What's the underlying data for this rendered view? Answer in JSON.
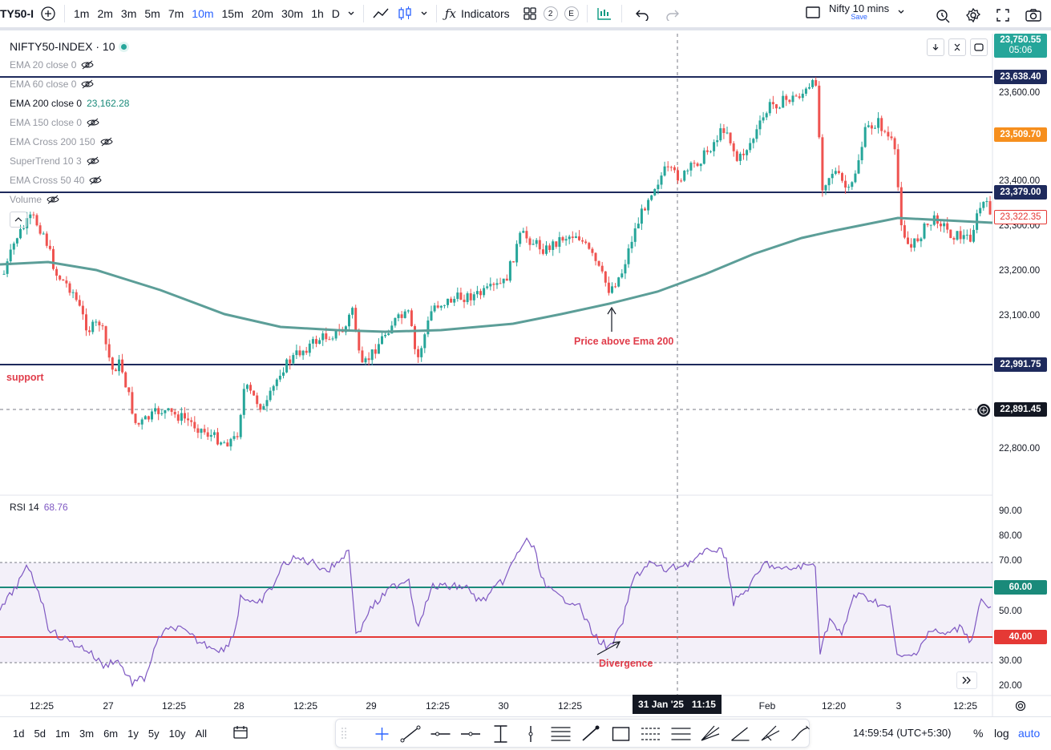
{
  "topbar": {
    "symbol_short": "TY50-I",
    "timeframes": [
      "1m",
      "2m",
      "3m",
      "5m",
      "7m",
      "10m",
      "15m",
      "20m",
      "30m",
      "1h",
      "D"
    ],
    "active_timeframe": "10m",
    "indicators_label": "Indicators",
    "badge_2": "2",
    "badge_e": "E",
    "layout_name": "Nifty 10 mins",
    "layout_save": "Save"
  },
  "legend": {
    "title": "NIFTY50-INDEX · 10",
    "items": [
      {
        "label": "EMA 20 close 0",
        "value": "",
        "hidden": true
      },
      {
        "label": "EMA 60 close 0",
        "value": "",
        "hidden": true
      },
      {
        "label": "EMA 200 close 0",
        "value": "23,162.28",
        "hidden": false
      },
      {
        "label": "EMA 150 close 0",
        "value": "",
        "hidden": true
      },
      {
        "label": "EMA Cross 200 150",
        "value": "",
        "hidden": true
      },
      {
        "label": "SuperTrend 10 3",
        "value": "",
        "hidden": true
      },
      {
        "label": "EMA Cross 50 40",
        "value": "",
        "hidden": true
      },
      {
        "label": "Volume",
        "value": "",
        "hidden": true
      }
    ]
  },
  "rsi": {
    "label": "RSI 14",
    "value": "68.76"
  },
  "price_axis": {
    "ticks": [
      "23,600.00",
      "23,400.00",
      "23,300.00",
      "23,200.00",
      "23,100.00",
      "22,800.00"
    ],
    "labels": [
      {
        "text": "23,750.55",
        "sub": "05:06",
        "color": "#26a69a"
      },
      {
        "text": "23,638.40",
        "color": "#1e2a5c"
      },
      {
        "text": "23,509.70",
        "color": "#f68f1e"
      },
      {
        "text": "23,379.00",
        "color": "#1e2a5c"
      },
      {
        "text": "23,322.35",
        "color": "#ffffff"
      },
      {
        "text": "22,991.75",
        "color": "#1e2a5c"
      },
      {
        "text": "22,891.45",
        "color": "#131722"
      }
    ]
  },
  "rsi_axis": {
    "ticks": [
      "90.00",
      "80.00",
      "70.00",
      "50.00",
      "30.00",
      "20.00"
    ],
    "labels": [
      {
        "text": "60.00",
        "color": "#1a8a7a"
      },
      {
        "text": "40.00",
        "color": "#e03c3c"
      }
    ]
  },
  "time_axis": {
    "ticks": [
      "12:25",
      "27",
      "12:25",
      "28",
      "12:25",
      "29",
      "12:25",
      "30",
      "12:25",
      "Feb",
      "12:20",
      "3",
      "12:25"
    ],
    "crosshair_label": "31 Jan '25   11:15"
  },
  "annotations": {
    "support": "support",
    "price_above": "Price above Ema 200",
    "divergence": "Divergence"
  },
  "bottombar": {
    "ranges": [
      "1d",
      "5d",
      "1m",
      "3m",
      "6m",
      "1y",
      "5y",
      "10y",
      "All"
    ],
    "clock": "14:59:54 (UTC+5:30)",
    "percent": "%",
    "log": "log",
    "auto": "auto"
  },
  "chart_data": {
    "type": "candlestick",
    "ema_200_value": 23162.28,
    "rsi_value": 68.76,
    "horizontal_levels": [
      23638.4,
      23379.0,
      22991.75
    ],
    "rsi_levels": [
      70,
      60,
      40,
      30
    ]
  }
}
